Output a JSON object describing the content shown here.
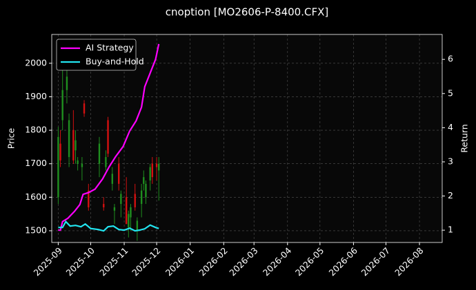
{
  "chart_data": {
    "type": "candlestick",
    "title": "cnoption [MO2606-P-8400.CFX]",
    "ylabel": "Price",
    "y2label": "Return",
    "xlim": [
      "2025-08-26",
      "2026-08-22"
    ],
    "xticks": [
      {
        "value": "2025-09-01",
        "label": "2025-09"
      },
      {
        "value": "2025-10-01",
        "label": "2025-10"
      },
      {
        "value": "2025-11-01",
        "label": "2025-11"
      },
      {
        "value": "2025-12-01",
        "label": "2025-12"
      },
      {
        "value": "2026-01-01",
        "label": "2026-01"
      },
      {
        "value": "2026-02-01",
        "label": "2026-02"
      },
      {
        "value": "2026-03-01",
        "label": "2026-03"
      },
      {
        "value": "2026-04-01",
        "label": "2026-04"
      },
      {
        "value": "2026-05-01",
        "label": "2026-05"
      },
      {
        "value": "2026-06-01",
        "label": "2026-06"
      },
      {
        "value": "2026-07-01",
        "label": "2026-07"
      },
      {
        "value": "2026-08-01",
        "label": "2026-08"
      }
    ],
    "ylim": [
      1465,
      2086
    ],
    "yticks": [
      1500,
      1600,
      1700,
      1800,
      1900,
      2000
    ],
    "y2lim": [
      0.64,
      6.73
    ],
    "y2ticks": [
      1,
      2,
      3,
      4,
      5,
      6
    ],
    "grid": true,
    "legend": "upper left",
    "up_color": "#1f8f1f",
    "down_color": "#d41010",
    "candles": {
      "x": [
        "2025-09-01",
        "2025-09-03",
        "2025-09-05",
        "2025-09-09",
        "2025-09-11",
        "2025-09-15",
        "2025-09-17",
        "2025-09-19",
        "2025-09-23",
        "2025-09-25",
        "2025-09-29",
        "2025-10-09",
        "2025-10-13",
        "2025-10-15",
        "2025-10-17",
        "2025-10-21",
        "2025-10-23",
        "2025-10-27",
        "2025-10-29",
        "2025-11-03",
        "2025-11-05",
        "2025-11-07",
        "2025-11-11",
        "2025-11-13",
        "2025-11-17",
        "2025-11-19",
        "2025-11-21",
        "2025-11-25",
        "2025-11-27",
        "2025-12-01",
        "2025-12-03"
      ],
      "open": [
        1600,
        1760,
        1830,
        1920,
        1720,
        1800,
        1740,
        1700,
        1690,
        1880,
        1620,
        1700,
        1580,
        1690,
        1830,
        1640,
        1560,
        1700,
        1580,
        1600,
        1510,
        1540,
        1610,
        1500,
        1580,
        1640,
        1600,
        1650,
        1700,
        1700,
        1680
      ],
      "high": [
        1810,
        1800,
        1990,
        2000,
        1850,
        1860,
        1800,
        1720,
        1720,
        1890,
        1640,
        1780,
        1600,
        1740,
        1840,
        1690,
        1580,
        1720,
        1620,
        1660,
        1560,
        1580,
        1640,
        1540,
        1640,
        1680,
        1650,
        1700,
        1720,
        1720,
        1720
      ],
      "low": [
        1580,
        1690,
        1800,
        1880,
        1690,
        1700,
        1700,
        1680,
        1650,
        1840,
        1560,
        1660,
        1560,
        1680,
        1720,
        1620,
        1520,
        1620,
        1540,
        1520,
        1480,
        1500,
        1560,
        1470,
        1540,
        1620,
        1580,
        1620,
        1640,
        1650,
        1590
      ],
      "close": [
        1780,
        1710,
        1920,
        1960,
        1830,
        1710,
        1770,
        1710,
        1700,
        1850,
        1570,
        1760,
        1570,
        1720,
        1730,
        1670,
        1570,
        1640,
        1610,
        1520,
        1550,
        1570,
        1570,
        1530,
        1620,
        1660,
        1640,
        1690,
        1660,
        1690,
        1700
      ]
    },
    "series": [
      {
        "name": "AI Strategy",
        "color": "#ff00ff",
        "axis": "y2",
        "x": [
          "2025-09-01",
          "2025-09-03",
          "2025-09-05",
          "2025-09-10",
          "2025-09-16",
          "2025-09-21",
          "2025-09-24",
          "2025-09-29",
          "2025-10-05",
          "2025-10-12",
          "2025-10-18",
          "2025-10-24",
          "2025-10-31",
          "2025-11-06",
          "2025-11-12",
          "2025-11-17",
          "2025-11-20",
          "2025-11-25",
          "2025-11-30",
          "2025-12-03"
        ],
        "values": [
          1.0,
          1.0,
          1.25,
          1.35,
          1.55,
          1.75,
          2.05,
          2.1,
          2.2,
          2.5,
          2.85,
          3.15,
          3.45,
          3.9,
          4.2,
          4.6,
          5.2,
          5.6,
          6.0,
          6.45
        ]
      },
      {
        "name": "Buy-and-Hold",
        "color": "#22e5f0",
        "axis": "y2",
        "x": [
          "2025-09-01",
          "2025-09-05",
          "2025-09-08",
          "2025-09-12",
          "2025-09-17",
          "2025-09-22",
          "2025-09-26",
          "2025-10-01",
          "2025-10-08",
          "2025-10-13",
          "2025-10-17",
          "2025-10-22",
          "2025-10-27",
          "2025-11-01",
          "2025-11-06",
          "2025-11-11",
          "2025-11-15",
          "2025-11-20",
          "2025-11-25",
          "2025-11-30",
          "2025-12-03"
        ],
        "values": [
          1.08,
          1.08,
          1.25,
          1.12,
          1.14,
          1.1,
          1.18,
          1.05,
          1.02,
          0.98,
          1.1,
          1.12,
          1.02,
          1.0,
          1.06,
          0.98,
          1.0,
          1.04,
          1.15,
          1.08,
          1.05
        ]
      }
    ]
  }
}
